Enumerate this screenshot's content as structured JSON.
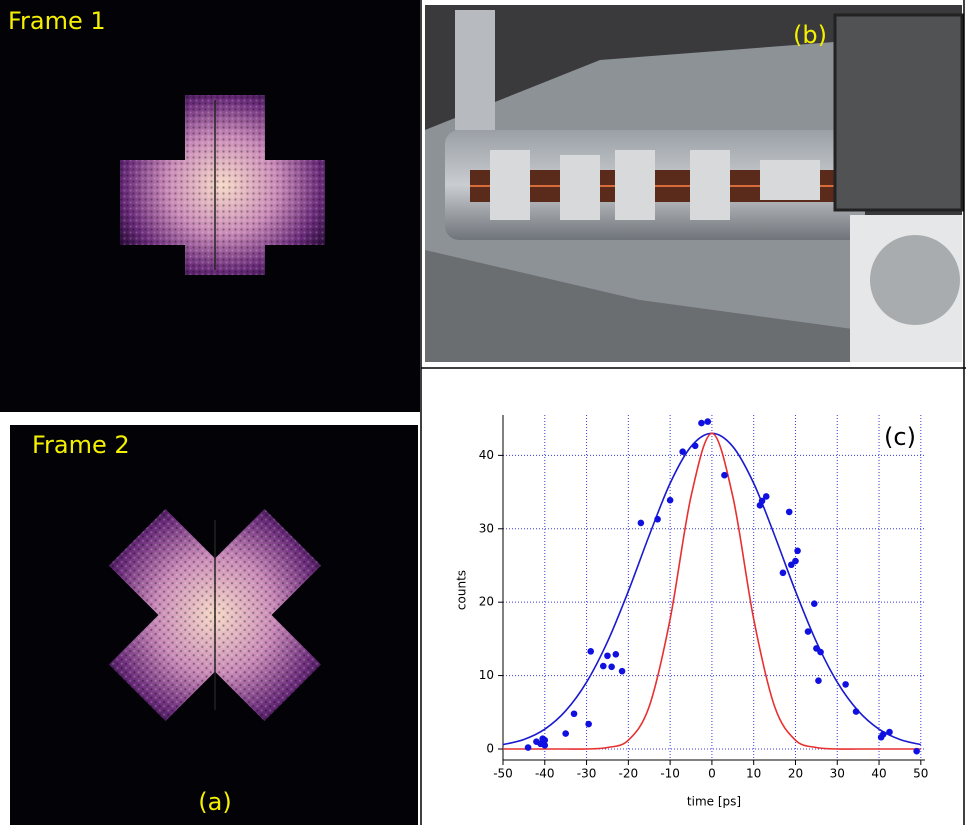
{
  "panels": {
    "frame1": "Frame 1",
    "frame2": "Frame 2",
    "a": "(a)",
    "b": "(b)"
  },
  "chart_data": {
    "type": "scatter",
    "annotation": "(c)",
    "x_label": "time [ps]",
    "y_label": "counts",
    "xlim": [
      -50,
      51
    ],
    "ylim": [
      -1.5,
      45.5
    ],
    "xticks": [
      -50,
      -40,
      -30,
      -20,
      -10,
      0,
      10,
      20,
      30,
      40,
      50
    ],
    "yticks": [
      0,
      10,
      20,
      30,
      40
    ],
    "grid": true,
    "grid_color": "#3b3bd9",
    "series": [
      {
        "type": "scatter",
        "color": "#1010e0",
        "x": [
          -44,
          -42,
          -41,
          -40.5,
          -40,
          -40,
          -35,
          -33,
          -29.5,
          -29,
          -26,
          -25,
          -24,
          -23,
          -21.5,
          -17,
          -13,
          -10,
          -7,
          -4,
          -2.5,
          -1,
          3,
          11.5,
          12,
          13,
          17,
          18.5,
          19,
          20,
          20.5,
          23,
          24.5,
          25,
          25.5,
          26,
          32,
          34.5,
          40.5,
          41,
          42.5,
          49
        ],
        "values": [
          0.2,
          1,
          0.7,
          1.4,
          0.5,
          1.2,
          2.1,
          4.8,
          3.4,
          13.3,
          11.3,
          12.7,
          11.2,
          12.9,
          10.6,
          30.8,
          31.3,
          33.9,
          40.5,
          41.3,
          44.4,
          44.6,
          37.3,
          33.2,
          33.8,
          34.4,
          24,
          32.3,
          25.1,
          25.6,
          27,
          16,
          19.8,
          13.7,
          9.3,
          13.2,
          8.8,
          5.1,
          1.6,
          2,
          2.3,
          -0.3
        ]
      },
      {
        "type": "line",
        "color": "#1a1ad0",
        "x": [
          -50,
          -45,
          -40,
          -35,
          -30,
          -25,
          -20,
          -15,
          -10,
          -5,
          0,
          5,
          10,
          15,
          20,
          25,
          30,
          35,
          40,
          45,
          50
        ],
        "values": [
          0.6,
          1.3,
          2.7,
          5.2,
          9.1,
          14.6,
          21.5,
          29.1,
          36.2,
          41.2,
          43,
          41.2,
          36.2,
          29.1,
          21.5,
          14.6,
          9.1,
          5.2,
          2.7,
          1.3,
          0.6
        ]
      },
      {
        "type": "line",
        "color": "#e83030",
        "x": [
          -50,
          -45,
          -40,
          -35,
          -30,
          -25,
          -20,
          -15,
          -10,
          -5,
          0,
          5,
          10,
          15,
          20,
          25,
          30,
          35,
          40,
          45,
          50
        ],
        "values": [
          0,
          0,
          0,
          0,
          0,
          0.2,
          1.2,
          5.8,
          17.7,
          34.4,
          43,
          34.4,
          17.7,
          5.8,
          1.2,
          0.2,
          0,
          0,
          0,
          0,
          0
        ]
      }
    ]
  }
}
